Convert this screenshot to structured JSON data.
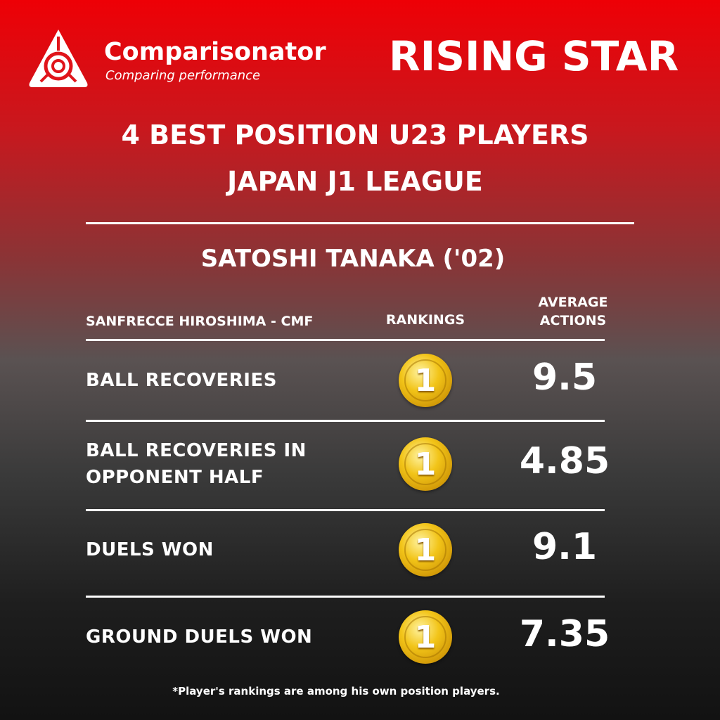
{
  "brand": {
    "name": "Comparisonator",
    "tagline": "Comparing performance"
  },
  "badge": "RISING STAR",
  "title": [
    "4 BEST POSITION U23 PLAYERS",
    "JAPAN J1 LEAGUE"
  ],
  "player": "SATOSHI TANAKA ('02)",
  "table": {
    "headers": {
      "team": "SANFRECCE HIROSHIMA - CMF",
      "rankings": "RANKINGS",
      "average": [
        "AVERAGE",
        "ACTIONS"
      ]
    },
    "rows": [
      {
        "label": [
          "BALL RECOVERIES"
        ],
        "rank": 1,
        "value": 9.5
      },
      {
        "label": [
          "BALL RECOVERIES IN",
          "OPPONENT HALF"
        ],
        "rank": 1,
        "value": 4.85
      },
      {
        "label": [
          "DUELS WON"
        ],
        "rank": 1,
        "value": 9.1
      },
      {
        "label": [
          "GROUND DUELS WON"
        ],
        "rank": 1,
        "value": 7.35
      }
    ]
  },
  "footnote": "*Player's rankings are among his own position players."
}
